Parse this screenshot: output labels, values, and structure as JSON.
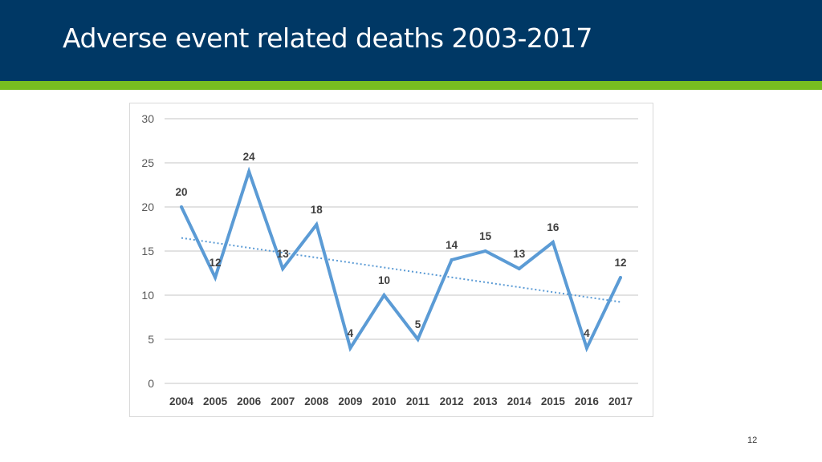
{
  "slide": {
    "title": "Adverse event related deaths 2003-2017",
    "page_number": "12",
    "colors": {
      "header": "#003865",
      "accent_strip": "#78be20",
      "series": "#5b9bd5",
      "trendline": "#5b9bd5"
    }
  },
  "chart_data": {
    "type": "line",
    "title": "",
    "xlabel": "",
    "ylabel": "",
    "categories": [
      "2004",
      "2005",
      "2006",
      "2007",
      "2008",
      "2009",
      "2010",
      "2011",
      "2012",
      "2013",
      "2014",
      "2015",
      "2016",
      "2017"
    ],
    "series": [
      {
        "values": [
          20,
          12,
          24,
          13,
          18,
          4,
          10,
          5,
          14,
          15,
          13,
          16,
          4,
          12
        ],
        "data_labels": true
      }
    ],
    "trendline": {
      "type": "linear",
      "style": "dotted"
    },
    "ylim": [
      0,
      30
    ],
    "yticks": [
      0,
      5,
      10,
      15,
      20,
      25,
      30
    ],
    "grid": "horizontal",
    "legend": "none"
  }
}
